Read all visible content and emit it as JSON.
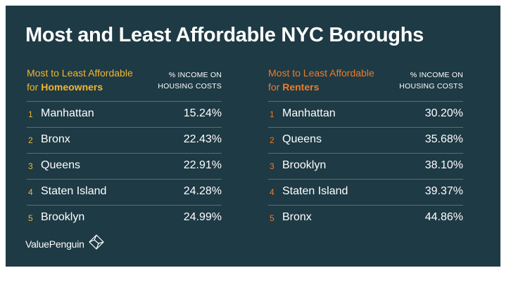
{
  "title": "Most and Least Affordable NYC Boroughs",
  "brand": "ValuePenguin",
  "colors": {
    "background": "#1e3a44",
    "homeowners_accent": "#f2b632",
    "renters_accent": "#f07a2a",
    "divider": "#5b6f77"
  },
  "chart_data": [
    {
      "type": "table",
      "header": {
        "label_line1": "Most to Least Affordable",
        "label_prefix": "for",
        "label_keyword": "Homeowners",
        "metric_line1": "% INCOME ON",
        "metric_line2": "HOUSING COSTS"
      },
      "rows": [
        {
          "rank": "1",
          "borough": "Manhattan",
          "value": 15.24,
          "value_text": "15.24%"
        },
        {
          "rank": "2",
          "borough": "Bronx",
          "value": 22.43,
          "value_text": "22.43%"
        },
        {
          "rank": "3",
          "borough": "Queens",
          "value": 22.91,
          "value_text": "22.91%"
        },
        {
          "rank": "4",
          "borough": "Staten Island",
          "value": 24.28,
          "value_text": "24.28%"
        },
        {
          "rank": "5",
          "borough": "Brooklyn",
          "value": 24.99,
          "value_text": "24.99%"
        }
      ]
    },
    {
      "type": "table",
      "header": {
        "label_line1": "Most to Least Affordable",
        "label_prefix": "for",
        "label_keyword": "Renters",
        "metric_line1": "% INCOME ON",
        "metric_line2": "HOUSING COSTS"
      },
      "rows": [
        {
          "rank": "1",
          "borough": "Manhattan",
          "value": 30.2,
          "value_text": "30.20%"
        },
        {
          "rank": "2",
          "borough": "Queens",
          "value": 35.68,
          "value_text": "35.68%"
        },
        {
          "rank": "3",
          "borough": "Brooklyn",
          "value": 38.1,
          "value_text": "38.10%"
        },
        {
          "rank": "4",
          "borough": "Staten Island",
          "value": 39.37,
          "value_text": "39.37%"
        },
        {
          "rank": "5",
          "borough": "Bronx",
          "value": 44.86,
          "value_text": "44.86%"
        }
      ]
    }
  ]
}
